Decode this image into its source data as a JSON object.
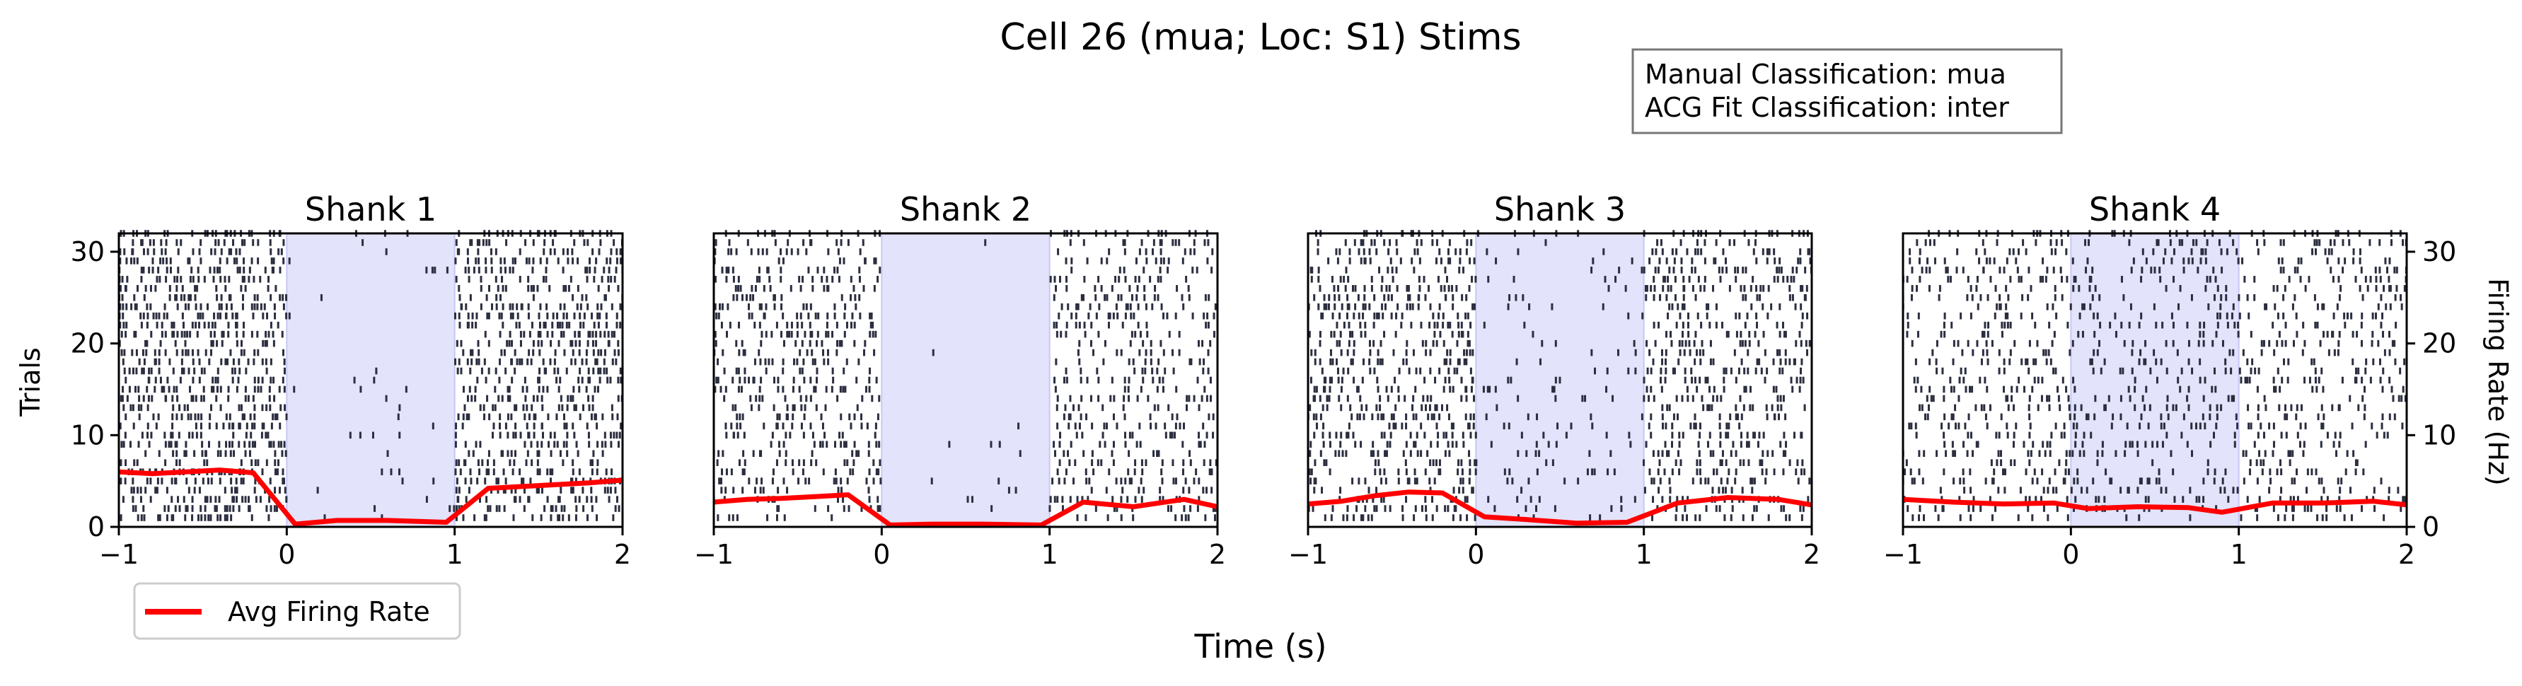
{
  "figure": {
    "title": "Cell 26 (mua; Loc: S1) Stims",
    "xlabel": "Time (s)",
    "ylabel_left": "Trials",
    "ylabel_right": "Firing Rate (Hz)",
    "info_box": {
      "line1": "Manual Classification: mua",
      "line2": "ACG Fit Classification: inter"
    },
    "legend": {
      "label": "Avg Firing Rate",
      "color": "#ff0000",
      "placement": "below-left"
    }
  },
  "colors": {
    "raster": "#2b2e3f",
    "stim_shade": "#e3e3fb",
    "stim_edge": "#c6c8f5",
    "firing_rate": "#ff0000"
  },
  "chart_data": [
    {
      "type": "raster+line",
      "title": "Shank 1",
      "xlim": [
        -1,
        2
      ],
      "ylim_trials": [
        0,
        32
      ],
      "ylim_rate": [
        0,
        32
      ],
      "xticks": [
        -1,
        0,
        1,
        2
      ],
      "yticks": [
        0,
        10,
        20,
        30
      ],
      "stim_window": [
        0,
        1
      ],
      "trials": 32,
      "spike_density": {
        "pre": 0.85,
        "stim": 0.04,
        "post": 0.7
      },
      "firing_rate": {
        "name": "Avg Firing Rate",
        "x": [
          -1.0,
          -0.8,
          -0.6,
          -0.4,
          -0.2,
          0.05,
          0.3,
          0.6,
          0.95,
          1.2,
          1.5,
          1.8,
          2.0
        ],
        "y": [
          6.0,
          5.8,
          6.0,
          6.2,
          5.9,
          0.3,
          0.7,
          0.7,
          0.5,
          4.2,
          4.5,
          4.8,
          5.1
        ]
      }
    },
    {
      "type": "raster+line",
      "title": "Shank 2",
      "xlim": [
        -1,
        2
      ],
      "ylim_trials": [
        0,
        32
      ],
      "ylim_rate": [
        0,
        32
      ],
      "xticks": [
        -1,
        0,
        1,
        2
      ],
      "yticks": [],
      "stim_window": [
        0,
        1
      ],
      "trials": 32,
      "spike_density": {
        "pre": 0.55,
        "stim": 0.015,
        "post": 0.45
      },
      "firing_rate": {
        "name": "Avg Firing Rate",
        "x": [
          -1.0,
          -0.8,
          -0.6,
          -0.4,
          -0.2,
          0.05,
          0.3,
          0.6,
          0.95,
          1.2,
          1.5,
          1.8,
          2.0
        ],
        "y": [
          2.7,
          3.0,
          3.1,
          3.3,
          3.5,
          0.2,
          0.3,
          0.3,
          0.2,
          2.7,
          2.2,
          3.0,
          2.2
        ]
      }
    },
    {
      "type": "raster+line",
      "title": "Shank 3",
      "xlim": [
        -1,
        2
      ],
      "ylim_trials": [
        0,
        32
      ],
      "ylim_rate": [
        0,
        32
      ],
      "xticks": [
        -1,
        0,
        1,
        2
      ],
      "yticks": [],
      "stim_window": [
        0,
        1
      ],
      "trials": 32,
      "spike_density": {
        "pre": 0.65,
        "stim": 0.12,
        "post": 0.55
      },
      "firing_rate": {
        "name": "Avg Firing Rate",
        "x": [
          -1.0,
          -0.8,
          -0.6,
          -0.4,
          -0.2,
          0.05,
          0.3,
          0.6,
          0.9,
          1.2,
          1.5,
          1.8,
          2.0
        ],
        "y": [
          2.5,
          2.8,
          3.4,
          3.8,
          3.7,
          1.1,
          0.8,
          0.4,
          0.5,
          2.6,
          3.2,
          3.0,
          2.4
        ]
      }
    },
    {
      "type": "raster+line",
      "title": "Shank 4",
      "xlim": [
        -1,
        2
      ],
      "ylim_trials": [
        0,
        32
      ],
      "ylim_rate": [
        0,
        32
      ],
      "xticks": [
        -1,
        0,
        1,
        2
      ],
      "yticks_right": [
        0,
        10,
        20,
        30
      ],
      "stim_window": [
        0,
        1
      ],
      "trials": 32,
      "spike_density": {
        "pre": 0.45,
        "stim": 0.35,
        "post": 0.42
      },
      "firing_rate": {
        "name": "Avg Firing Rate",
        "x": [
          -1.0,
          -0.7,
          -0.4,
          -0.1,
          0.1,
          0.4,
          0.7,
          0.9,
          1.2,
          1.5,
          1.8,
          2.0
        ],
        "y": [
          3.0,
          2.7,
          2.5,
          2.6,
          2.0,
          2.2,
          2.1,
          1.6,
          2.6,
          2.6,
          2.8,
          2.4
        ]
      }
    }
  ]
}
